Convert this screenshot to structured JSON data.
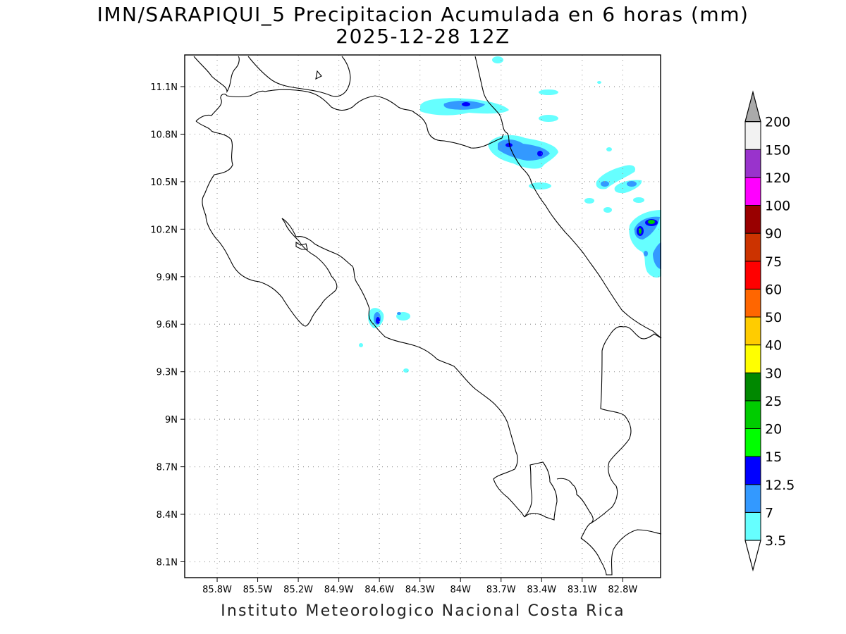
{
  "title": "IMN/SARAPIQUI_5 Precipitacion Acumulada en 6 horas (mm)",
  "subtitle": "2025-12-28 12Z",
  "credit": "Instituto Meteorologico Nacional Costa Rica",
  "map": {
    "lon_range": [
      -86.04,
      -82.52
    ],
    "lat_range": [
      8.0,
      11.3
    ],
    "lon_ticks": [
      {
        "value": -85.8,
        "label": "85.8W"
      },
      {
        "value": -85.5,
        "label": "85.5W"
      },
      {
        "value": -85.2,
        "label": "85.2W"
      },
      {
        "value": -84.9,
        "label": "84.9W"
      },
      {
        "value": -84.6,
        "label": "84.6W"
      },
      {
        "value": -84.3,
        "label": "84.3W"
      },
      {
        "value": -84.0,
        "label": "84W"
      },
      {
        "value": -83.7,
        "label": "83.7W"
      },
      {
        "value": -83.4,
        "label": "83.4W"
      },
      {
        "value": -83.1,
        "label": "83.1W"
      },
      {
        "value": -82.8,
        "label": "82.8W"
      }
    ],
    "lat_ticks": [
      {
        "value": 11.1,
        "label": "11.1N"
      },
      {
        "value": 10.8,
        "label": "10.8N"
      },
      {
        "value": 10.5,
        "label": "10.5N"
      },
      {
        "value": 10.2,
        "label": "10.2N"
      },
      {
        "value": 9.9,
        "label": "9.9N"
      },
      {
        "value": 9.6,
        "label": "9.6N"
      },
      {
        "value": 9.3,
        "label": "9.3N"
      },
      {
        "value": 9.0,
        "label": "9N"
      },
      {
        "value": 8.7,
        "label": "8.7N"
      },
      {
        "value": 8.4,
        "label": "8.4N"
      },
      {
        "value": 8.1,
        "label": "8.1N"
      }
    ],
    "grid": "dotted"
  },
  "colorbar": {
    "levels": [
      {
        "label": "3.5",
        "color": "#66ffff"
      },
      {
        "label": "7",
        "color": "#3399ff"
      },
      {
        "label": "12.5",
        "color": "#0000ff"
      },
      {
        "label": "15",
        "color": "#00ff00"
      },
      {
        "label": "20",
        "color": "#00cc00"
      },
      {
        "label": "25",
        "color": "#008800"
      },
      {
        "label": "30",
        "color": "#ffff00"
      },
      {
        "label": "40",
        "color": "#ffcc00"
      },
      {
        "label": "50",
        "color": "#ff6600"
      },
      {
        "label": "60",
        "color": "#ff0000"
      },
      {
        "label": "75",
        "color": "#cc3300"
      },
      {
        "label": "90",
        "color": "#990000"
      },
      {
        "label": "100",
        "color": "#ff00ff"
      },
      {
        "label": "120",
        "color": "#9933cc"
      },
      {
        "label": "150",
        "color": "#f2f2f2"
      },
      {
        "label": "200",
        "color": "#aaaaaa"
      }
    ]
  }
}
